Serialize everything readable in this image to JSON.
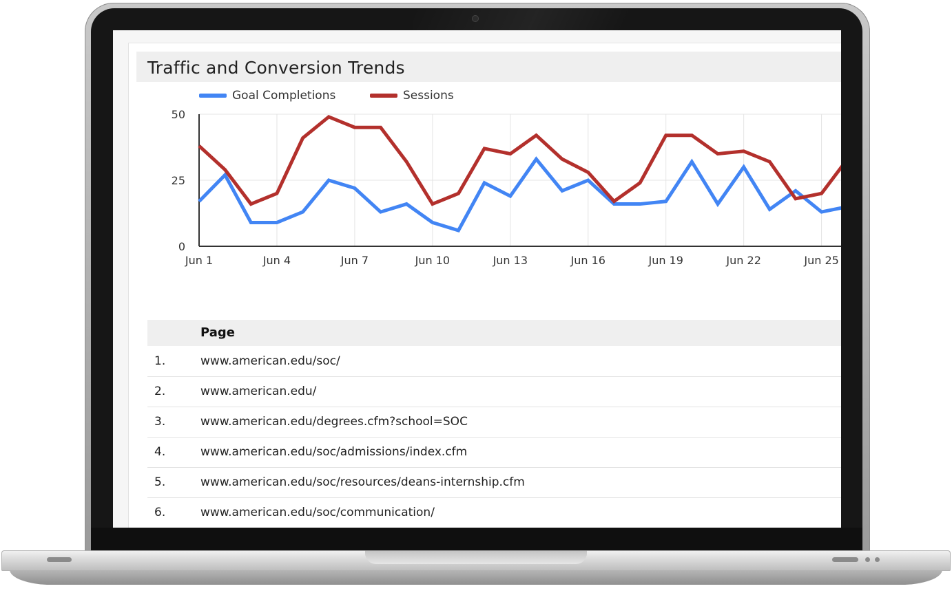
{
  "report": {
    "title": "Traffic and Conversion Trends"
  },
  "chart_data": {
    "type": "line",
    "x": [
      "Jun 1",
      "Jun 2",
      "Jun 3",
      "Jun 4",
      "Jun 5",
      "Jun 6",
      "Jun 7",
      "Jun 8",
      "Jun 9",
      "Jun 10",
      "Jun 11",
      "Jun 12",
      "Jun 13",
      "Jun 14",
      "Jun 15",
      "Jun 16",
      "Jun 17",
      "Jun 18",
      "Jun 19",
      "Jun 20",
      "Jun 21",
      "Jun 22",
      "Jun 23",
      "Jun 24",
      "Jun 25",
      "Jun 26"
    ],
    "x_tick_labels": [
      "Jun 1",
      "Jun 4",
      "Jun 7",
      "Jun 10",
      "Jun 13",
      "Jun 16",
      "Jun 19",
      "Jun 22",
      "Jun 25"
    ],
    "ylim": [
      0,
      50
    ],
    "y_tick_labels": [
      "50",
      "25",
      "0"
    ],
    "grid": true,
    "legend": "top-left",
    "series": [
      {
        "name": "Goal Completions",
        "color": "#4285f4",
        "values": [
          17,
          27,
          9,
          9,
          13,
          25,
          22,
          13,
          16,
          9,
          6,
          24,
          19,
          33,
          21,
          25,
          16,
          16,
          17,
          32,
          16,
          30,
          14,
          21,
          13,
          15
        ]
      },
      {
        "name": "Sessions",
        "color": "#b3302c",
        "values": [
          38,
          29,
          16,
          20,
          41,
          49,
          45,
          45,
          32,
          16,
          20,
          37,
          35,
          42,
          33,
          28,
          17,
          24,
          42,
          42,
          35,
          36,
          32,
          18,
          20,
          33
        ]
      }
    ]
  },
  "table": {
    "header": "Page",
    "rows": [
      {
        "index": "1.",
        "page": "www.american.edu/soc/"
      },
      {
        "index": "2.",
        "page": "www.american.edu/"
      },
      {
        "index": "3.",
        "page": "www.american.edu/degrees.cfm?school=SOC"
      },
      {
        "index": "4.",
        "page": "www.american.edu/soc/admissions/index.cfm"
      },
      {
        "index": "5.",
        "page": "www.american.edu/soc/resources/deans-internship.cfm"
      },
      {
        "index": "6.",
        "page": "www.american.edu/soc/communication/"
      }
    ]
  }
}
